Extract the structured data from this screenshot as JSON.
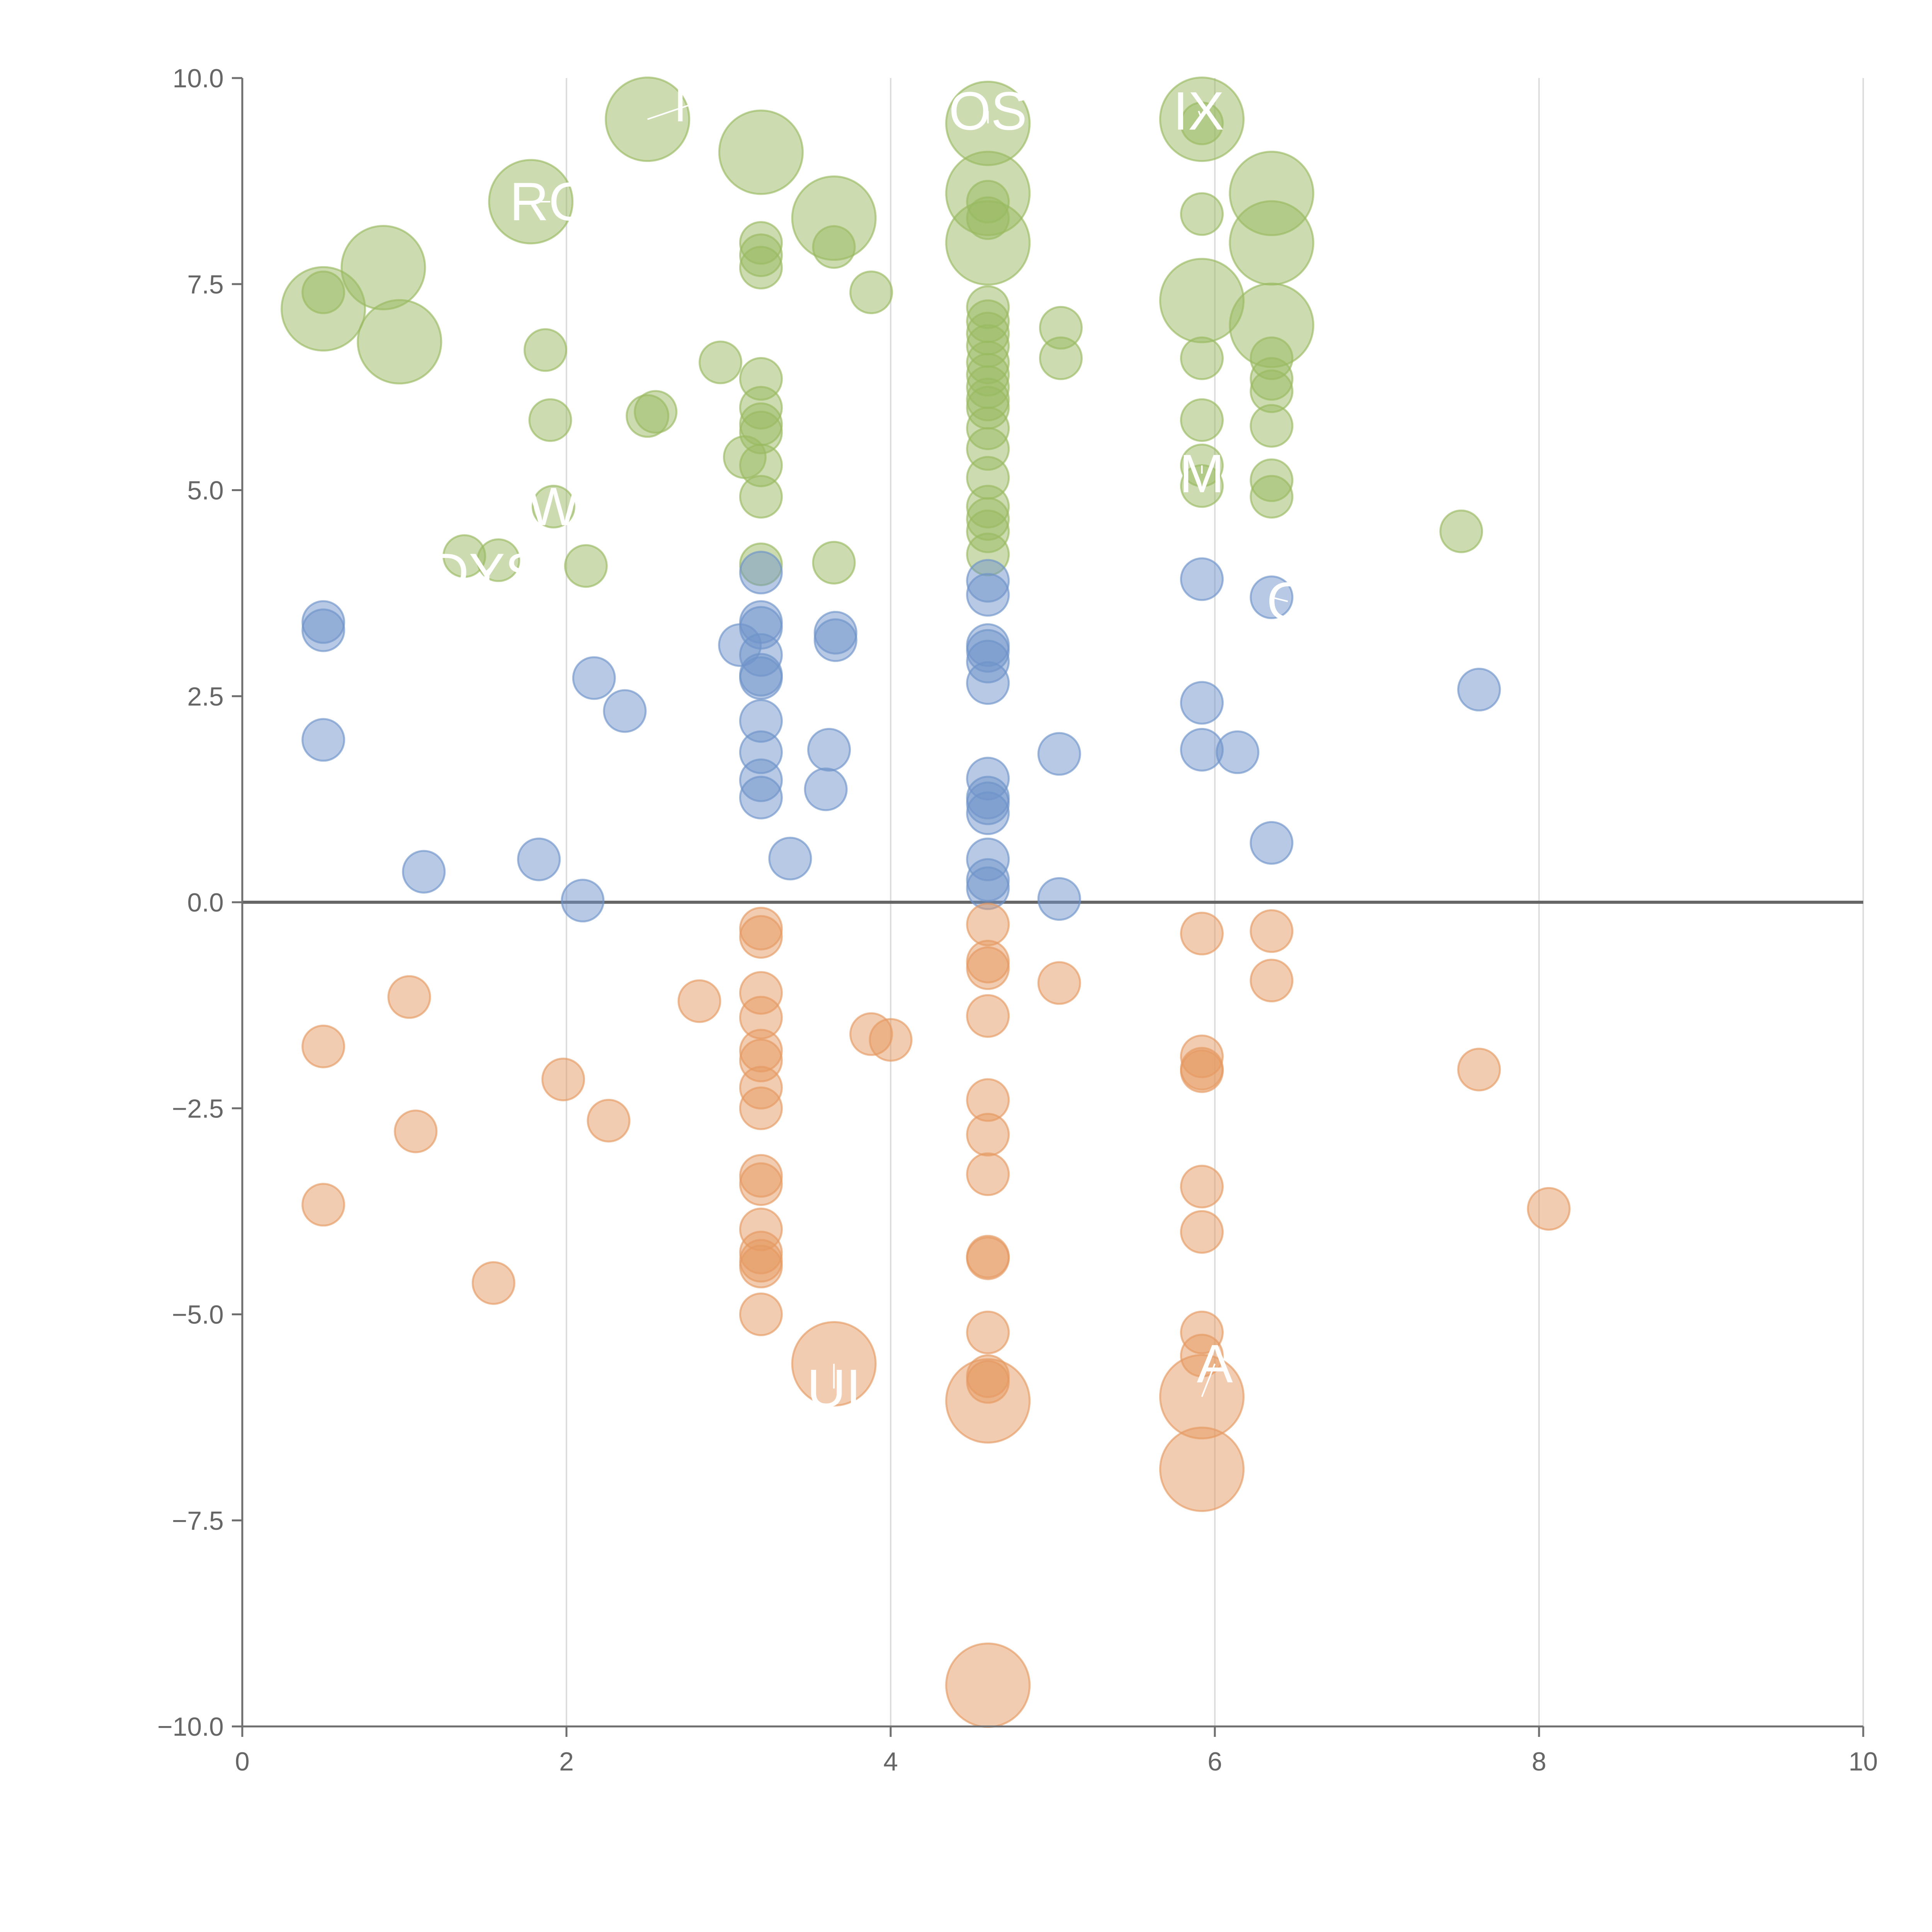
{
  "colors": {
    "positive": "#9aba61",
    "mid": "#6f93c9",
    "negative": "#e59a62",
    "axis": "#6f6f6f",
    "grid": "#dddddd",
    "zero_line": "#666666",
    "tick_text": "#666666",
    "label_text": "#ffffff"
  },
  "chart_data": {
    "type": "scatter",
    "title": "",
    "xlabel": "",
    "ylabel": "",
    "xlim": [
      0,
      10
    ],
    "ylim": [
      -10,
      10
    ],
    "grid": "vertical",
    "zero_line": true,
    "x_ticks": [
      "0",
      "2",
      "4",
      "6",
      "8",
      "10"
    ],
    "y_ticks": [
      "10.0",
      "7.5",
      "5.0",
      "2.5",
      "0.0",
      "−2.5",
      "−5.0",
      "−7.5",
      "−10.0"
    ],
    "x_tick_values": [
      0,
      2,
      4,
      6,
      8,
      10
    ],
    "y_tick_values": [
      10,
      7.5,
      5,
      2.5,
      0,
      -2.5,
      -5,
      -7.5,
      -10
    ],
    "series": [
      {
        "color": "#9aba61",
        "points": [
          {
            "x": 0.5,
            "y": 7.2,
            "s": 3
          },
          {
            "x": 0.5,
            "y": 7.4,
            "s": 1
          },
          {
            "x": 0.87,
            "y": 7.7,
            "s": 3
          },
          {
            "x": 0.97,
            "y": 6.8,
            "s": 3
          },
          {
            "x": 1.37,
            "y": 4.2,
            "s": 1
          },
          {
            "x": 1.58,
            "y": 4.15,
            "s": 1
          },
          {
            "x": 1.78,
            "y": 8.5,
            "s": 3
          },
          {
            "x": 1.87,
            "y": 6.7,
            "s": 1
          },
          {
            "x": 1.9,
            "y": 5.85,
            "s": 1
          },
          {
            "x": 1.92,
            "y": 4.8,
            "s": 1
          },
          {
            "x": 2.12,
            "y": 4.08,
            "s": 1
          },
          {
            "x": 2.5,
            "y": 9.5,
            "s": 3
          },
          {
            "x": 2.5,
            "y": 5.9,
            "s": 1
          },
          {
            "x": 2.55,
            "y": 5.95,
            "s": 1
          },
          {
            "x": 2.95,
            "y": 6.55,
            "s": 1
          },
          {
            "x": 3.2,
            "y": 9.1,
            "s": 3
          },
          {
            "x": 3.2,
            "y": 8.0,
            "s": 1
          },
          {
            "x": 3.2,
            "y": 7.85,
            "s": 1
          },
          {
            "x": 3.2,
            "y": 7.7,
            "s": 1
          },
          {
            "x": 3.2,
            "y": 6.35,
            "s": 1
          },
          {
            "x": 3.2,
            "y": 6.0,
            "s": 1
          },
          {
            "x": 3.2,
            "y": 5.8,
            "s": 1
          },
          {
            "x": 3.2,
            "y": 5.7,
            "s": 1
          },
          {
            "x": 3.1,
            "y": 5.4,
            "s": 1
          },
          {
            "x": 3.2,
            "y": 5.3,
            "s": 1
          },
          {
            "x": 3.2,
            "y": 4.92,
            "s": 1
          },
          {
            "x": 3.2,
            "y": 4.1,
            "s": 1
          },
          {
            "x": 3.65,
            "y": 8.3,
            "s": 3
          },
          {
            "x": 3.65,
            "y": 7.95,
            "s": 1
          },
          {
            "x": 3.65,
            "y": 4.12,
            "s": 1
          },
          {
            "x": 3.88,
            "y": 7.4,
            "s": 1
          },
          {
            "x": 4.6,
            "y": 9.45,
            "s": 3
          },
          {
            "x": 4.6,
            "y": 8.6,
            "s": 3
          },
          {
            "x": 4.6,
            "y": 8.5,
            "s": 1
          },
          {
            "x": 4.6,
            "y": 8.3,
            "s": 1
          },
          {
            "x": 4.6,
            "y": 8.0,
            "s": 3
          },
          {
            "x": 4.6,
            "y": 7.22,
            "s": 1
          },
          {
            "x": 4.6,
            "y": 7.05,
            "s": 1
          },
          {
            "x": 4.6,
            "y": 6.9,
            "s": 1
          },
          {
            "x": 4.6,
            "y": 6.75,
            "s": 1
          },
          {
            "x": 4.6,
            "y": 6.55,
            "s": 1
          },
          {
            "x": 4.6,
            "y": 6.4,
            "s": 1
          },
          {
            "x": 4.6,
            "y": 6.25,
            "s": 1
          },
          {
            "x": 4.6,
            "y": 6.1,
            "s": 1
          },
          {
            "x": 4.6,
            "y": 6.0,
            "s": 1
          },
          {
            "x": 4.6,
            "y": 5.75,
            "s": 1
          },
          {
            "x": 4.6,
            "y": 5.5,
            "s": 1
          },
          {
            "x": 4.6,
            "y": 5.15,
            "s": 1
          },
          {
            "x": 4.6,
            "y": 4.8,
            "s": 1
          },
          {
            "x": 4.6,
            "y": 4.65,
            "s": 1
          },
          {
            "x": 4.6,
            "y": 4.5,
            "s": 1
          },
          {
            "x": 4.6,
            "y": 4.22,
            "s": 1
          },
          {
            "x": 5.05,
            "y": 6.97,
            "s": 1
          },
          {
            "x": 5.05,
            "y": 6.6,
            "s": 1
          },
          {
            "x": 5.92,
            "y": 9.5,
            "s": 3
          },
          {
            "x": 5.92,
            "y": 9.45,
            "s": 1
          },
          {
            "x": 5.92,
            "y": 8.35,
            "s": 1
          },
          {
            "x": 5.92,
            "y": 7.3,
            "s": 3
          },
          {
            "x": 5.92,
            "y": 6.6,
            "s": 1
          },
          {
            "x": 5.92,
            "y": 5.85,
            "s": 1
          },
          {
            "x": 5.92,
            "y": 5.3,
            "s": 1
          },
          {
            "x": 5.92,
            "y": 5.05,
            "s": 1
          },
          {
            "x": 6.35,
            "y": 8.6,
            "s": 3
          },
          {
            "x": 6.35,
            "y": 8.0,
            "s": 3
          },
          {
            "x": 6.35,
            "y": 7.0,
            "s": 3
          },
          {
            "x": 6.35,
            "y": 6.6,
            "s": 1
          },
          {
            "x": 6.35,
            "y": 6.35,
            "s": 1
          },
          {
            "x": 6.35,
            "y": 6.2,
            "s": 1
          },
          {
            "x": 6.35,
            "y": 5.78,
            "s": 1
          },
          {
            "x": 6.35,
            "y": 5.12,
            "s": 1
          },
          {
            "x": 6.35,
            "y": 4.92,
            "s": 1
          },
          {
            "x": 7.52,
            "y": 4.5,
            "s": 1
          }
        ]
      },
      {
        "color": "#6f93c9",
        "points": [
          {
            "x": 0.5,
            "y": 3.4,
            "s": 1
          },
          {
            "x": 0.5,
            "y": 3.3,
            "s": 1
          },
          {
            "x": 0.5,
            "y": 1.97,
            "s": 1
          },
          {
            "x": 1.12,
            "y": 0.37,
            "s": 1
          },
          {
            "x": 1.83,
            "y": 0.52,
            "s": 1
          },
          {
            "x": 2.1,
            "y": 0.02,
            "s": 1
          },
          {
            "x": 2.17,
            "y": 2.72,
            "s": 1
          },
          {
            "x": 2.36,
            "y": 2.32,
            "s": 1
          },
          {
            "x": 3.07,
            "y": 3.12,
            "s": 1
          },
          {
            "x": 3.2,
            "y": 4.0,
            "s": 1
          },
          {
            "x": 3.2,
            "y": 3.4,
            "s": 1
          },
          {
            "x": 3.2,
            "y": 3.33,
            "s": 1
          },
          {
            "x": 3.2,
            "y": 3.0,
            "s": 1
          },
          {
            "x": 3.2,
            "y": 2.76,
            "s": 1
          },
          {
            "x": 3.2,
            "y": 2.72,
            "s": 1
          },
          {
            "x": 3.2,
            "y": 2.2,
            "s": 1
          },
          {
            "x": 3.2,
            "y": 1.82,
            "s": 1
          },
          {
            "x": 3.2,
            "y": 1.48,
            "s": 1
          },
          {
            "x": 3.2,
            "y": 1.27,
            "s": 1
          },
          {
            "x": 3.38,
            "y": 0.53,
            "s": 1
          },
          {
            "x": 3.6,
            "y": 1.37,
            "s": 1
          },
          {
            "x": 3.62,
            "y": 1.85,
            "s": 1
          },
          {
            "x": 3.66,
            "y": 3.27,
            "s": 1
          },
          {
            "x": 3.66,
            "y": 3.18,
            "s": 1
          },
          {
            "x": 4.6,
            "y": 3.9,
            "s": 1
          },
          {
            "x": 4.6,
            "y": 3.73,
            "s": 1
          },
          {
            "x": 4.6,
            "y": 3.12,
            "s": 1
          },
          {
            "x": 4.6,
            "y": 3.05,
            "s": 1
          },
          {
            "x": 4.6,
            "y": 2.92,
            "s": 1
          },
          {
            "x": 4.6,
            "y": 2.66,
            "s": 1
          },
          {
            "x": 4.6,
            "y": 1.5,
            "s": 1
          },
          {
            "x": 4.6,
            "y": 1.27,
            "s": 1
          },
          {
            "x": 4.6,
            "y": 1.2,
            "s": 1
          },
          {
            "x": 4.6,
            "y": 1.08,
            "s": 1
          },
          {
            "x": 4.6,
            "y": 0.52,
            "s": 1
          },
          {
            "x": 4.6,
            "y": 0.27,
            "s": 1
          },
          {
            "x": 4.6,
            "y": 0.17,
            "s": 1
          },
          {
            "x": 5.04,
            "y": 1.8,
            "s": 1
          },
          {
            "x": 5.04,
            "y": 0.04,
            "s": 1
          },
          {
            "x": 5.92,
            "y": 3.92,
            "s": 1
          },
          {
            "x": 5.92,
            "y": 2.42,
            "s": 1
          },
          {
            "x": 5.92,
            "y": 1.85,
            "s": 1
          },
          {
            "x": 6.14,
            "y": 1.82,
            "s": 1
          },
          {
            "x": 6.35,
            "y": 3.7,
            "s": 1
          },
          {
            "x": 6.35,
            "y": 0.72,
            "s": 1
          },
          {
            "x": 7.63,
            "y": 2.58,
            "s": 1
          }
        ]
      },
      {
        "color": "#e59a62",
        "points": [
          {
            "x": 0.5,
            "y": -1.75,
            "s": 1
          },
          {
            "x": 0.5,
            "y": -3.67,
            "s": 1
          },
          {
            "x": 1.03,
            "y": -1.15,
            "s": 1
          },
          {
            "x": 1.07,
            "y": -2.78,
            "s": 1
          },
          {
            "x": 1.55,
            "y": -4.62,
            "s": 1
          },
          {
            "x": 1.98,
            "y": -2.15,
            "s": 1
          },
          {
            "x": 2.26,
            "y": -2.65,
            "s": 1
          },
          {
            "x": 2.82,
            "y": -1.2,
            "s": 1
          },
          {
            "x": 3.2,
            "y": -0.32,
            "s": 1
          },
          {
            "x": 3.2,
            "y": -0.42,
            "s": 1
          },
          {
            "x": 3.2,
            "y": -1.1,
            "s": 1
          },
          {
            "x": 3.2,
            "y": -1.4,
            "s": 1
          },
          {
            "x": 3.2,
            "y": -1.8,
            "s": 1
          },
          {
            "x": 3.2,
            "y": -1.92,
            "s": 1
          },
          {
            "x": 3.2,
            "y": -2.25,
            "s": 1
          },
          {
            "x": 3.2,
            "y": -2.5,
            "s": 1
          },
          {
            "x": 3.2,
            "y": -3.32,
            "s": 1
          },
          {
            "x": 3.2,
            "y": -3.42,
            "s": 1
          },
          {
            "x": 3.2,
            "y": -3.97,
            "s": 1
          },
          {
            "x": 3.2,
            "y": -4.25,
            "s": 1
          },
          {
            "x": 3.2,
            "y": -4.35,
            "s": 1
          },
          {
            "x": 3.2,
            "y": -4.42,
            "s": 1
          },
          {
            "x": 3.2,
            "y": -5.0,
            "s": 1
          },
          {
            "x": 3.65,
            "y": -5.6,
            "s": 3
          },
          {
            "x": 3.88,
            "y": -1.6,
            "s": 1
          },
          {
            "x": 4.0,
            "y": -1.67,
            "s": 1
          },
          {
            "x": 4.6,
            "y": -0.27,
            "s": 1
          },
          {
            "x": 4.6,
            "y": -0.72,
            "s": 1
          },
          {
            "x": 4.6,
            "y": -0.8,
            "s": 1
          },
          {
            "x": 4.6,
            "y": -1.38,
            "s": 1
          },
          {
            "x": 4.6,
            "y": -2.4,
            "s": 1
          },
          {
            "x": 4.6,
            "y": -2.82,
            "s": 1
          },
          {
            "x": 4.6,
            "y": -3.3,
            "s": 1
          },
          {
            "x": 4.6,
            "y": -4.3,
            "s": 1
          },
          {
            "x": 4.6,
            "y": -4.32,
            "s": 1
          },
          {
            "x": 4.6,
            "y": -5.22,
            "s": 1
          },
          {
            "x": 4.6,
            "y": -5.75,
            "s": 1
          },
          {
            "x": 4.6,
            "y": -5.82,
            "s": 1
          },
          {
            "x": 4.6,
            "y": -6.05,
            "s": 3
          },
          {
            "x": 4.6,
            "y": -9.5,
            "s": 3
          },
          {
            "x": 5.04,
            "y": -0.98,
            "s": 1
          },
          {
            "x": 5.92,
            "y": -0.38,
            "s": 1
          },
          {
            "x": 5.92,
            "y": -1.87,
            "s": 1
          },
          {
            "x": 5.92,
            "y": -2.02,
            "s": 1
          },
          {
            "x": 5.92,
            "y": -2.05,
            "s": 1
          },
          {
            "x": 5.92,
            "y": -3.45,
            "s": 1
          },
          {
            "x": 5.92,
            "y": -4.0,
            "s": 1
          },
          {
            "x": 5.92,
            "y": -5.22,
            "s": 1
          },
          {
            "x": 5.92,
            "y": -5.5,
            "s": 1
          },
          {
            "x": 5.92,
            "y": -6.0,
            "s": 3
          },
          {
            "x": 5.92,
            "y": -6.88,
            "s": 3
          },
          {
            "x": 6.35,
            "y": -0.35,
            "s": 1
          },
          {
            "x": 6.35,
            "y": -0.95,
            "s": 1
          },
          {
            "x": 7.63,
            "y": -2.03,
            "s": 1
          },
          {
            "x": 8.06,
            "y": -3.72,
            "s": 1
          }
        ]
      }
    ],
    "labels": [
      {
        "text": "RO",
        "x": 1.78,
        "y": 8.5,
        "lx": 1.9,
        "ly": 8.5,
        "anchor": "middle"
      },
      {
        "text": "W",
        "x": 1.92,
        "y": 4.8,
        "lx": 1.92,
        "ly": 4.8,
        "anchor": "middle"
      },
      {
        "text": "DYS",
        "x": 1.58,
        "y": 4.15,
        "lx": 1.5,
        "ly": 4.0,
        "anchor": "middle"
      },
      {
        "text": "M",
        "x": 2.5,
        "y": 9.5,
        "lx": 2.8,
        "ly": 9.7,
        "anchor": "middle"
      },
      {
        "text": "OS",
        "x": 4.6,
        "y": 9.45,
        "lx": 4.6,
        "ly": 9.6,
        "anchor": "middle"
      },
      {
        "text": "IX",
        "x": 5.92,
        "y": 9.5,
        "lx": 5.9,
        "ly": 9.6,
        "anchor": "middle"
      },
      {
        "text": "M",
        "x": 5.92,
        "y": 5.3,
        "lx": 5.92,
        "ly": 5.2,
        "anchor": "middle"
      },
      {
        "text": "O",
        "x": 6.35,
        "y": 3.7,
        "lx": 6.45,
        "ly": 3.65,
        "anchor": "middle"
      },
      {
        "text": "UI",
        "x": 3.65,
        "y": -5.6,
        "lx": 3.65,
        "ly": -5.9,
        "anchor": "middle"
      },
      {
        "text": "A",
        "x": 5.92,
        "y": -6.0,
        "lx": 6.0,
        "ly": -5.6,
        "anchor": "middle"
      }
    ]
  }
}
